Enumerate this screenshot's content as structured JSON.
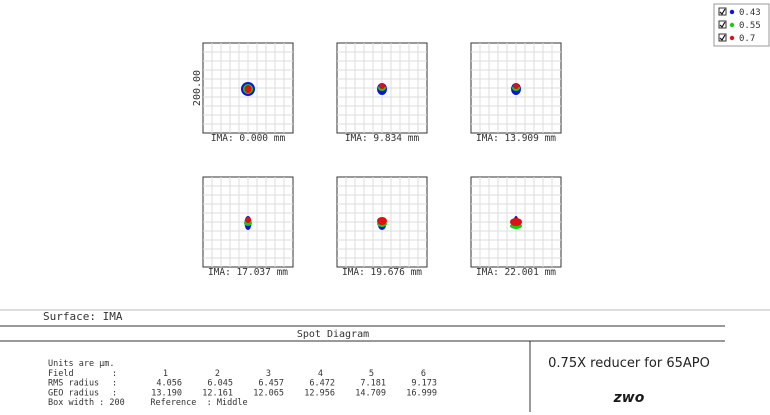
{
  "legend": [
    {
      "label": "0.43",
      "color": "#1010e0"
    },
    {
      "label": "0.55",
      "color": "#10d010"
    },
    {
      "label": "0.7",
      "color": "#e01010"
    }
  ],
  "box_axis_label": "200.00",
  "panels": [
    {
      "label": "IMA: 0.000 mm"
    },
    {
      "label": "IMA: 9.834 mm"
    },
    {
      "label": "IMA: 13.909 mm"
    },
    {
      "label": "IMA: 17.037 mm"
    },
    {
      "label": "IMA: 19.676 mm"
    },
    {
      "label": "IMA: 22.001 mm"
    }
  ],
  "surface": "Surface: IMA",
  "section_title": "Spot Diagram",
  "table": {
    "units": "Units are µm.",
    "rows": [
      {
        "label": "Field",
        "sep": ":",
        "values": [
          "1",
          "2",
          "3",
          "4",
          "5",
          "6"
        ]
      },
      {
        "label": "RMS radius",
        "sep": ":",
        "values": [
          "4.056",
          "6.045",
          "6.457",
          "6.472",
          "7.181",
          "9.173"
        ]
      },
      {
        "label": "GEO radius",
        "sep": ":",
        "values": [
          "13.190",
          "12.161",
          "12.065",
          "12.956",
          "14.709",
          "16.999"
        ]
      }
    ],
    "footer": "Box width : 200     Reference  : Middle"
  },
  "title_box": "0.75X reducer for 65APO",
  "logo": "zwo"
}
